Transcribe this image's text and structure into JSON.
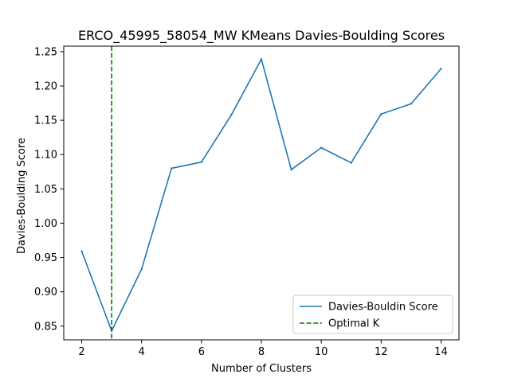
{
  "chart_data": {
    "type": "line",
    "title": "ERCO_45995_58054_MW KMeans Davies-Boulding Scores",
    "xlabel": "Number of Clusters",
    "ylabel": "Davies-Boulding Score",
    "xlim": [
      1.4,
      14.6
    ],
    "ylim": [
      0.83,
      1.258
    ],
    "xticks": [
      2,
      4,
      6,
      8,
      10,
      12,
      14
    ],
    "yticks": [
      0.85,
      0.9,
      0.95,
      1.0,
      1.05,
      1.1,
      1.15,
      1.2,
      1.25
    ],
    "ytick_labels": [
      "0.85",
      "0.90",
      "0.95",
      "1.00",
      "1.05",
      "1.10",
      "1.15",
      "1.20",
      "1.25"
    ],
    "grid": false,
    "legend_position": "lower-right",
    "series": [
      {
        "name": "Davies-Bouldin Score",
        "color": "#1f77b4",
        "style": "solid",
        "x": [
          2,
          3,
          4,
          5,
          6,
          7,
          8,
          9,
          10,
          11,
          12,
          13,
          14
        ],
        "values": [
          0.959,
          0.843,
          0.933,
          1.08,
          1.089,
          1.158,
          1.239,
          1.078,
          1.11,
          1.088,
          1.159,
          1.174,
          1.225
        ]
      }
    ],
    "vlines": [
      {
        "name": "Optimal K",
        "x": 3,
        "color": "#008000",
        "style": "dashed"
      }
    ]
  }
}
